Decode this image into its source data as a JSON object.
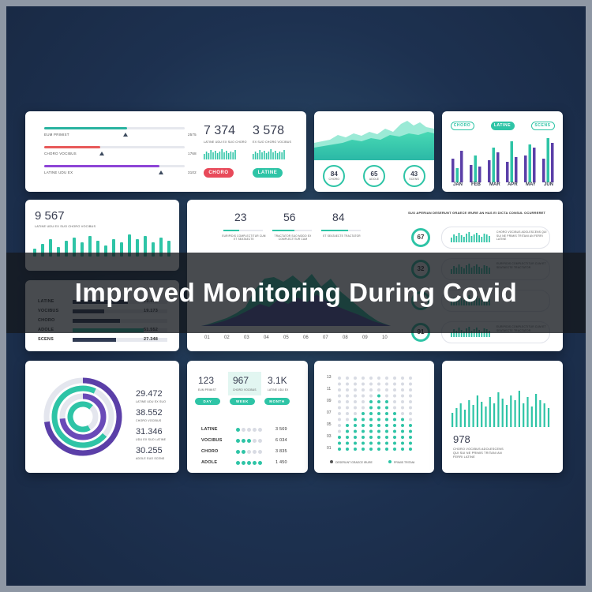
{
  "banner": {
    "title": "Improved Monitoring During Covid"
  },
  "progress_card": {
    "rows": [
      {
        "label": "EUM PRIMIST",
        "value": "2575",
        "fill": 0.59,
        "marker": 0.58,
        "color": "#2ab3a0"
      },
      {
        "label": "CHORO VOCIBUS",
        "value": "1768",
        "fill": 0.4,
        "marker": 0.41,
        "color": "#e85a5a"
      },
      {
        "label": "LATINE UDU EX",
        "value": "3102",
        "fill": 0.82,
        "marker": 0.83,
        "color": "#8e44d6"
      }
    ],
    "stats": [
      {
        "value": "7 374",
        "label": "LATINE UDU EX SUO CHORO",
        "button": "CHORO",
        "color": "#e84a5a"
      },
      {
        "value": "3 578",
        "label": "EX SUO CHORO VOCIBUS",
        "button": "LATINE",
        "color": "#2ec4a6"
      }
    ]
  },
  "area_card": {
    "circles": [
      {
        "value": "84",
        "label": "CHORO"
      },
      {
        "value": "65",
        "label": "ADOLE"
      },
      {
        "value": "43",
        "label": "SCENS"
      }
    ]
  },
  "month_card": {
    "tabs": [
      "CHORO",
      "LATINE",
      "SCENS"
    ],
    "months": [
      "JAN",
      "FEB",
      "MAR",
      "APR",
      "MAY",
      "JUN"
    ]
  },
  "count_card": {
    "value": "9 567",
    "label": "LATINE UDU EX SUO CHORO VOCIBUS"
  },
  "list_card": {
    "rows": [
      {
        "label": "LATINE",
        "value": "23.472"
      },
      {
        "label": "VOCIBUS",
        "value": "19.173"
      },
      {
        "label": "CHORO",
        "value": ""
      },
      {
        "label": "ADOLE",
        "value": "51.552"
      },
      {
        "label": "SCENS",
        "value": "27.348"
      }
    ]
  },
  "wave_card": {
    "stats": [
      {
        "value": "23",
        "label": "EURIPIDIS COMPLECTITUR CUM ET SEATAECTE"
      },
      {
        "value": "56",
        "label": "TRACTATOR SUO MODO EX COMPLECTITUR CUM"
      },
      {
        "value": "84",
        "label": "ET SEATAECTE TRACTATOR"
      }
    ],
    "x_ticks": [
      "01",
      "02",
      "03",
      "04",
      "05",
      "06",
      "07",
      "08",
      "09",
      "10"
    ],
    "side_title": "SUO APERIAN DESERUNT GRAECE IRURE AN HAS EI DICTA CONSUL OCURRERET",
    "side_rows": [
      {
        "value": "67",
        "text": "CHORO VOCIBUS ADOLESCENS QUI SUI NE PRIMIS TRITANI AN FERRI LATINE"
      },
      {
        "value": "32",
        "text": "EURIPIDIS COMPLECTITUR CUM ET SEATAECTE TRACTATOR"
      },
      {
        "value": "",
        "text": ""
      },
      {
        "value": "91",
        "text": "EURIPIDIS COMPLECTITUR CUM ET SEATAECTE TRACTATOR"
      }
    ]
  },
  "radial_card": {
    "values": [
      {
        "value": "29.472",
        "label": "LATINE UDU EX SUO"
      },
      {
        "value": "38.552",
        "label": "CHORO VOCIBUS"
      },
      {
        "value": "31.346",
        "label": "UDU EX SUO LATINE"
      },
      {
        "value": "30.255",
        "label": "ADOLE SUO SCENS"
      }
    ]
  },
  "dots_card": {
    "stats": [
      {
        "value": "123",
        "label": "EUM PRIMIST",
        "button": "DAY"
      },
      {
        "value": "967",
        "label": "CHORO VOCIBUS",
        "button": "WEEK"
      },
      {
        "value": "3.1K",
        "label": "LATINE UDU EX",
        "button": "MONTH"
      }
    ],
    "rows": [
      {
        "label": "LATINE",
        "filled": 1,
        "value": "3 569"
      },
      {
        "label": "VOCIBUS",
        "filled": 3,
        "value": "6 034"
      },
      {
        "label": "CHORO",
        "filled": 2,
        "value": "3 835"
      },
      {
        "label": "ADOLE",
        "filled": 5,
        "value": "1 450"
      }
    ]
  },
  "matrix_card": {
    "y_ticks": [
      "13",
      "11",
      "09",
      "07",
      "05",
      "03",
      "01"
    ],
    "legend": [
      "DESERUNT GRAECE IRURE",
      "PRIMIS TRITANI"
    ]
  },
  "spark_card": {
    "value": "978",
    "text_lines": [
      "CHORO VOCIBUS ADOLESCENS",
      "QUI SUI NE PRIMIS TRITANI AN",
      "FERRI LATINE"
    ]
  },
  "colors": {
    "teal": "#2ec4a6",
    "purple": "#5b3fa8",
    "red": "#e84a5a",
    "navy": "#1d3150"
  }
}
